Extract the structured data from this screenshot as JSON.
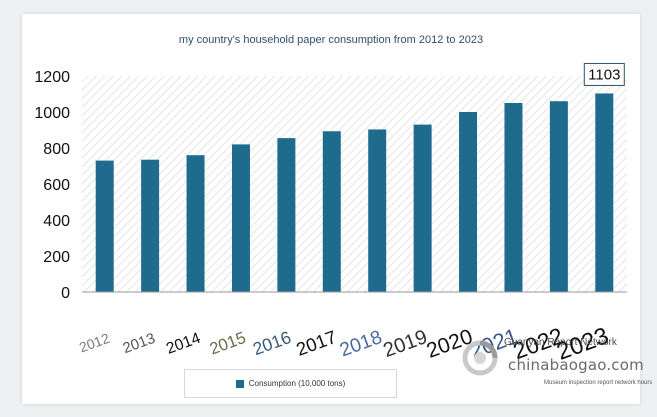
{
  "chart_data": {
    "type": "bar",
    "title": "my country's household paper consumption from 2012 to 2023",
    "categories": [
      "2012",
      "2013",
      "2014",
      "2015",
      "2016",
      "2017",
      "2018",
      "2019",
      "2020",
      "2021",
      "2022",
      "2023"
    ],
    "series": [
      {
        "name": "Consumption (10,000 tons)",
        "values": [
          730,
          735,
          760,
          820,
          855,
          893,
          903,
          930,
          1000,
          1050,
          1060,
          1103
        ]
      }
    ],
    "ylim": [
      0,
      1200
    ],
    "yticks": [
      "0",
      "200",
      "400",
      "600",
      "800",
      "1000",
      "1200"
    ],
    "callout": "1103",
    "grid": false,
    "legend_placement": "bottom",
    "colors": {
      "bar": "#1f6b8e"
    },
    "xtick_colors": [
      "#7a7a7a",
      "#555555",
      "#111111",
      "#6b6b4a",
      "#3a5a7a",
      "#111111",
      "#4a6aa0",
      "#333333",
      "#111111",
      "#3a5a8a",
      "#111111",
      "#111111"
    ]
  },
  "watermark": {
    "name": "Guanyan Report Network",
    "site": "chinabaogao.com",
    "note": "Museum inspection report network hours"
  }
}
